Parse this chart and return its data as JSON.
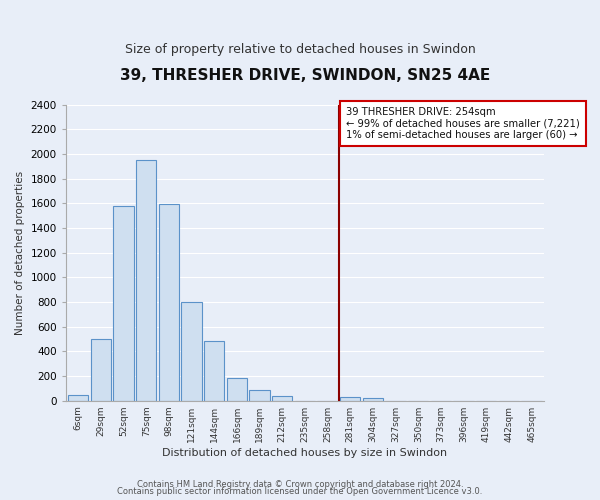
{
  "title": "39, THRESHER DRIVE, SWINDON, SN25 4AE",
  "subtitle": "Size of property relative to detached houses in Swindon",
  "xlabel": "Distribution of detached houses by size in Swindon",
  "ylabel": "Number of detached properties",
  "bar_labels": [
    "6sqm",
    "29sqm",
    "52sqm",
    "75sqm",
    "98sqm",
    "121sqm",
    "144sqm",
    "166sqm",
    "189sqm",
    "212sqm",
    "235sqm",
    "258sqm",
    "281sqm",
    "304sqm",
    "327sqm",
    "350sqm",
    "373sqm",
    "396sqm",
    "419sqm",
    "442sqm",
    "465sqm"
  ],
  "bar_values": [
    50,
    500,
    1580,
    1950,
    1590,
    800,
    480,
    185,
    90,
    35,
    0,
    0,
    30,
    20,
    0,
    0,
    0,
    0,
    0,
    0,
    0
  ],
  "bar_color": "#cfdff0",
  "bar_edge_color": "#5b92c9",
  "ylim": [
    0,
    2400
  ],
  "yticks": [
    0,
    200,
    400,
    600,
    800,
    1000,
    1200,
    1400,
    1600,
    1800,
    2000,
    2200,
    2400
  ],
  "vline_x_index": 11.5,
  "vline_color": "#8b0000",
  "annotation_title": "39 THRESHER DRIVE: 254sqm",
  "annotation_line1": "← 99% of detached houses are smaller (7,221)",
  "annotation_line2": "1% of semi-detached houses are larger (60) →",
  "annotation_box_color": "#ffffff",
  "annotation_box_edge_color": "#cc0000",
  "footer_line1": "Contains HM Land Registry data © Crown copyright and database right 2024.",
  "footer_line2": "Contains public sector information licensed under the Open Government Licence v3.0.",
  "background_color": "#e8eef8",
  "plot_bg_color": "#e8eef8",
  "grid_color": "#ffffff"
}
